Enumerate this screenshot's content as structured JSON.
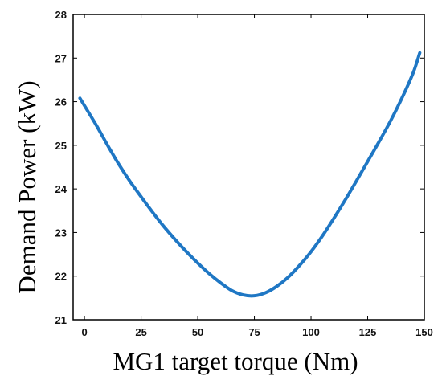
{
  "chart_data": {
    "type": "line",
    "title": "",
    "xlabel": "MG1 target torque (Nm)",
    "ylabel": "Demand Power (kW)",
    "xlim": [
      -5,
      150
    ],
    "ylim": [
      21,
      28
    ],
    "x_ticks": [
      0,
      25,
      50,
      75,
      100,
      125,
      150
    ],
    "y_ticks": [
      21,
      22,
      23,
      24,
      25,
      26,
      27,
      28
    ],
    "grid": false,
    "legend": "none",
    "series": [
      {
        "color": "#1f77c4",
        "x": [
          -2,
          5,
          10,
          15,
          20,
          25,
          30,
          35,
          40,
          45,
          50,
          55,
          60,
          65,
          70,
          75,
          80,
          85,
          90,
          95,
          100,
          105,
          110,
          115,
          120,
          125,
          130,
          135,
          140,
          145,
          148
        ],
        "y": [
          26.08,
          25.48,
          25.02,
          24.58,
          24.18,
          23.82,
          23.47,
          23.14,
          22.84,
          22.56,
          22.3,
          22.06,
          21.85,
          21.67,
          21.57,
          21.55,
          21.62,
          21.77,
          21.98,
          22.25,
          22.56,
          22.92,
          23.32,
          23.74,
          24.18,
          24.63,
          25.08,
          25.55,
          26.07,
          26.65,
          27.12
        ]
      }
    ]
  }
}
